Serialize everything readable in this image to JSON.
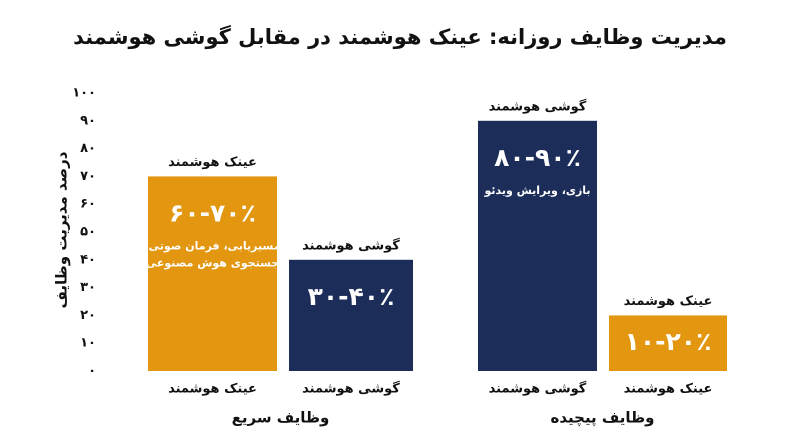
{
  "chart_data": {
    "type": "bar",
    "title": "مدیریت وظایف روزانه: عینک هوشمند در مقابل گوشی هوشمند",
    "ylabel": "درصد مدیریت وظایف",
    "categories": [
      "عینک هوشمند",
      "گوشی هوشمند",
      "گوشی هوشمند",
      "عینک هوشمند"
    ],
    "values": [
      70,
      40,
      90,
      20
    ],
    "value_labels": [
      "۶۰-۷۰٪",
      "۳۰-۴۰٪",
      "۸۰-۹۰٪",
      "۱۰-۲۰٪"
    ],
    "descriptions": [
      [
        "مسیریابی، فرمان صوتی،",
        "جستجوی هوش مصنوعی"
      ],
      null,
      [
        "بازی، ویرایش ویدئو"
      ],
      null
    ],
    "colors": [
      "#e3960f",
      "#1b2d58",
      "#1b2d58",
      "#e3960f"
    ],
    "group_labels": [
      "وظایف سریع",
      "وظایف پیچیده"
    ],
    "ylim": [
      0,
      100
    ],
    "yticks": [
      {
        "value": 0,
        "label": "۰"
      },
      {
        "value": 10,
        "label": "۱۰"
      },
      {
        "value": 20,
        "label": "۲۰"
      },
      {
        "value": 30,
        "label": "۳۰"
      },
      {
        "value": 40,
        "label": "۴۰"
      },
      {
        "value": 50,
        "label": "۵۰"
      },
      {
        "value": 60,
        "label": "۶۰"
      },
      {
        "value": 70,
        "label": "۷۰"
      },
      {
        "value": 80,
        "label": "۸۰"
      },
      {
        "value": 90,
        "label": "۹۰"
      },
      {
        "value": 100,
        "label": "۱۰۰"
      }
    ]
  }
}
